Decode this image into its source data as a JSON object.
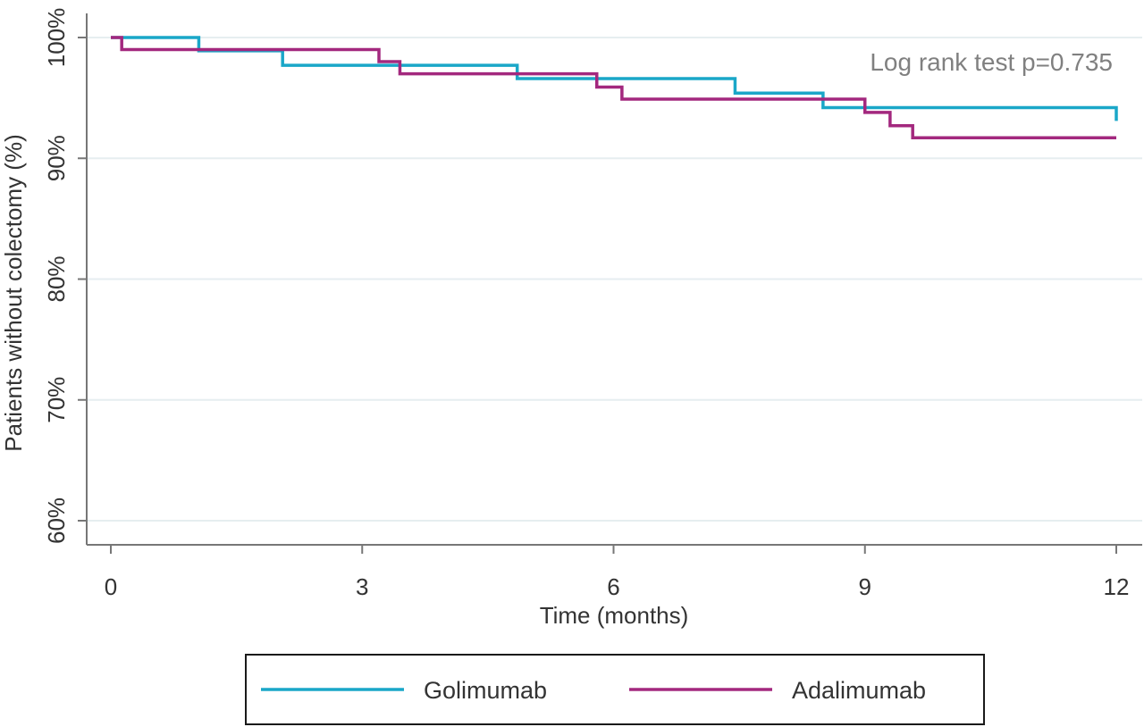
{
  "chart_data": {
    "type": "line",
    "title": "",
    "xlabel": "Time (months)",
    "ylabel": "Patients without colectomy (%)",
    "xlim": [
      0,
      12
    ],
    "ylim": [
      60,
      100
    ],
    "x_ticks": [
      0,
      3,
      6,
      9,
      12
    ],
    "x_tick_labels": [
      "0",
      "3",
      "6",
      "9",
      "12"
    ],
    "y_ticks": [
      60,
      70,
      80,
      90,
      100
    ],
    "y_tick_labels": [
      "60%",
      "70%",
      "80%",
      "90%",
      "100%"
    ],
    "grid": "horizontal",
    "annotation": "Log rank test p=0.735",
    "legend_position": "bottom",
    "series": [
      {
        "name": "Golimumab",
        "color": "#1aa7c8",
        "steps": [
          [
            0,
            100
          ],
          [
            1.05,
            98.9
          ],
          [
            2.05,
            97.7
          ],
          [
            4.85,
            96.6
          ],
          [
            7.45,
            95.4
          ],
          [
            8.5,
            94.2
          ],
          [
            12.0,
            93.1
          ]
        ]
      },
      {
        "name": "Adalimumab",
        "color": "#a3287e",
        "steps": [
          [
            0,
            100
          ],
          [
            0.13,
            99.0
          ],
          [
            3.2,
            98.0
          ],
          [
            3.45,
            97.0
          ],
          [
            5.8,
            95.9
          ],
          [
            6.1,
            94.9
          ],
          [
            9.0,
            93.8
          ],
          [
            9.3,
            92.7
          ],
          [
            9.57,
            91.7
          ]
        ],
        "end_x": 12.0
      }
    ]
  }
}
